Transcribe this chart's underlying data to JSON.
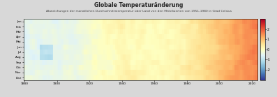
{
  "title": "Globale Temperaturänderung",
  "subtitle": "Abweichungen der monatlichen Durchschnittstemperatur über Land von den Mittelwerten von 1951-1980 in Grad Celsius",
  "year_start": 1880,
  "year_end": 2023,
  "months": [
    "Jan",
    "Feb",
    "Mär",
    "Apr",
    "Mai",
    "Jun",
    "Jul",
    "Aug",
    "Sep",
    "Okt",
    "Nov",
    "Dez"
  ],
  "cmap": "RdYlBu_r",
  "vmin": -3,
  "vmax": 3,
  "colorbar_ticks": [
    2,
    1,
    0,
    -1,
    -2
  ],
  "colorbar_labels": [
    "2",
    "1",
    "0",
    "-1",
    "-2"
  ],
  "title_fontsize": 5.5,
  "subtitle_fontsize": 3.2,
  "tick_fontsize": 3.2,
  "colorbar_fontsize": 3.5,
  "xlabel_years": [
    1880,
    1900,
    1920,
    1940,
    1960,
    1980,
    2000,
    2020
  ],
  "background_color": "#d8d8d8",
  "figsize": [
    3.97,
    1.39
  ],
  "dpi": 100
}
